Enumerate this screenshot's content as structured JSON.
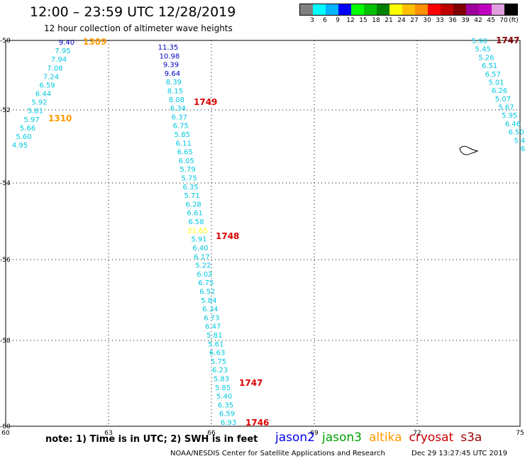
{
  "header": {
    "title": "12:00 – 23:59 UTC 12/28/2019",
    "subtitle": "12 hour collection of altimeter wave heights"
  },
  "legend": {
    "colors": [
      "#808080",
      "#00ffff",
      "#00b4ff",
      "#0000ff",
      "#00ff00",
      "#00c000",
      "#008000",
      "#ffff00",
      "#ffc000",
      "#ff9000",
      "#ff0000",
      "#c00000",
      "#800000",
      "#a000a0",
      "#c000c0",
      "#e0a0e0",
      "#000000"
    ],
    "labels": [
      "3",
      "6",
      "9",
      "12",
      "15",
      "18",
      "21",
      "24",
      "27",
      "30",
      "33",
      "36",
      "39",
      "42",
      "45",
      "70",
      "(ft)"
    ]
  },
  "axes": {
    "x_ticks": [
      "60",
      "63",
      "66",
      "69",
      "72",
      "75"
    ],
    "y_ticks": [
      "-50",
      "-52",
      "-54",
      "-56",
      "-58",
      "-60"
    ]
  },
  "wave_heights": {
    "left_track": [
      "9.40",
      "7.95",
      "7.94",
      "7.08",
      "7.24",
      "6.59",
      "6.44",
      "5.92",
      "5.81",
      "5.97",
      "5.66",
      "5.60",
      "4.95"
    ],
    "center_track": [
      "11.35",
      "10.98",
      "9.39",
      "9.64",
      "8.39",
      "8.15",
      "8.08",
      "6.34",
      "6.37",
      "6.75",
      "5.85",
      "6.11",
      "6.65",
      "6.05",
      "5.79",
      "5.75",
      "6.35",
      "5.71",
      "6.28",
      "6.61",
      "6.58",
      "21.65",
      "5.91",
      "6.40",
      "6.17",
      "5.22",
      "6.02",
      "6.75",
      "6.52",
      "5.84",
      "6.34",
      "6.73",
      "6.47",
      "5.81",
      "5.61",
      "6.63",
      "5.75",
      "6.23",
      "5.83",
      "5.85",
      "5.40",
      "6.35",
      "6.59",
      "6.93"
    ],
    "right_track": [
      "5.90",
      "5.45",
      "5.26",
      "6.51",
      "6.57",
      "5.01",
      "6.26",
      "5.07",
      "5.67",
      "5.95",
      "6.46",
      "6.50",
      "5.4",
      "6"
    ]
  },
  "pass_times": {
    "t1309": "1309",
    "t1310": "1310",
    "t1749": "1749",
    "t1748": "1748",
    "t1747": "1747",
    "t1746": "1746",
    "t1747_right": "1747"
  },
  "footer": {
    "note": "note:  1) Time is in UTC;  2) SWH is in feet",
    "satellites": [
      {
        "name": "jason2",
        "color": "#0000ee"
      },
      {
        "name": "jason3",
        "color": "#00a000"
      },
      {
        "name": "altika",
        "color": "#ff9900"
      },
      {
        "name": "cryosat",
        "color": "#cc0000"
      },
      {
        "name": "s3a",
        "color": "#990000"
      }
    ],
    "credit": "NOAA/NESDIS Center for Satellite Applications and Research",
    "timestamp": "Dec 29 13:27:45 UTC 2019"
  }
}
